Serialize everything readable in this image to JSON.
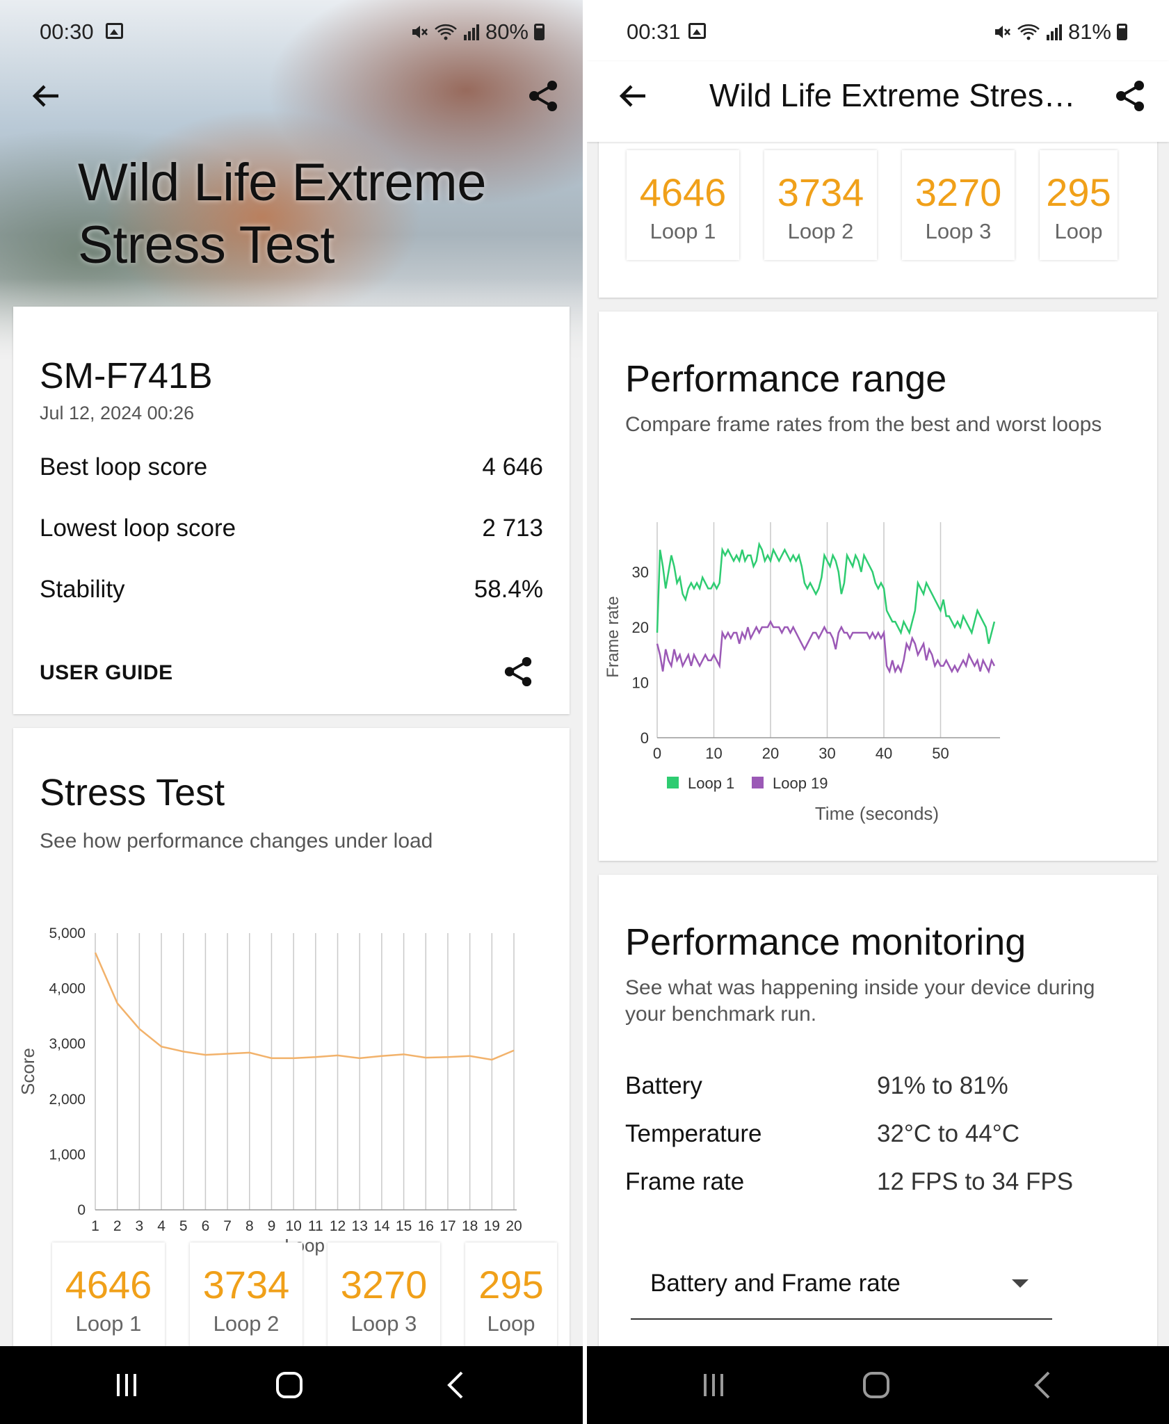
{
  "left": {
    "status": {
      "time": "00:30",
      "battery": "80%"
    },
    "hero_title_line1": "Wild Life Extreme",
    "hero_title_line2": "Stress Test",
    "summary": {
      "device": "SM-F741B",
      "date": "Jul 12, 2024 00:26",
      "rows": [
        {
          "label": "Best loop score",
          "value": "4 646"
        },
        {
          "label": "Lowest loop score",
          "value": "2 713"
        },
        {
          "label": "Stability",
          "value": "58.4%"
        }
      ],
      "user_guide": "USER GUIDE"
    },
    "stress": {
      "title": "Stress Test",
      "subtitle": "See how performance changes under load",
      "chart_data": {
        "type": "line",
        "x": [
          1,
          2,
          3,
          4,
          5,
          6,
          7,
          8,
          9,
          10,
          11,
          12,
          13,
          14,
          15,
          16,
          17,
          18,
          19,
          20
        ],
        "series": [
          {
            "color": "#f2b26b",
            "values": [
              4646,
              3734,
              3270,
              2950,
              2860,
              2800,
              2820,
              2840,
              2740,
              2740,
              2760,
              2790,
              2740,
              2780,
              2810,
              2750,
              2760,
              2780,
              2713,
              2880
            ]
          }
        ],
        "xlabel": "Loop",
        "ylabel": "Score",
        "ylim": [
          0,
          5000
        ],
        "yticks": [
          "0",
          "1,000",
          "2,000",
          "3,000",
          "4,000",
          "5,000"
        ],
        "grid": "vertical"
      },
      "loops": [
        {
          "score": "4646",
          "label": "Loop 1"
        },
        {
          "score": "3734",
          "label": "Loop 2"
        },
        {
          "score": "3270",
          "label": "Loop 3"
        },
        {
          "score": "295",
          "label": "Loop"
        }
      ]
    }
  },
  "right": {
    "status": {
      "time": "00:31",
      "battery": "81%"
    },
    "app_title": "Wild Life Extreme Stress...",
    "loops": [
      {
        "score": "4646",
        "label": "Loop 1"
      },
      {
        "score": "3734",
        "label": "Loop 2"
      },
      {
        "score": "3270",
        "label": "Loop 3"
      },
      {
        "score": "295",
        "label": "Loop"
      }
    ],
    "range": {
      "title": "Performance range",
      "subtitle": "Compare frame rates from the best and worst loops",
      "chart_data": {
        "type": "line",
        "xlabel": "Time (seconds)",
        "ylabel": "Frame rate",
        "xlim": [
          0,
          60
        ],
        "ylim": [
          0,
          39
        ],
        "xticks": [
          0,
          10,
          20,
          30,
          40,
          50
        ],
        "yticks": [
          0,
          10,
          20,
          30
        ],
        "grid": "vertical",
        "legend": "bottom-left",
        "series": [
          {
            "name": "Loop 1",
            "color": "#2ecc71",
            "x": [
              0,
              0.5,
              1,
              1.5,
              2,
              2.5,
              3,
              3.5,
              4,
              4.5,
              5,
              5.5,
              6,
              6.5,
              7,
              7.5,
              8,
              8.5,
              9,
              9.5,
              10,
              10.5,
              11,
              11.5,
              12,
              12.5,
              13,
              13.5,
              14,
              14.5,
              15,
              15.5,
              16,
              16.5,
              17,
              17.5,
              18,
              18.5,
              19,
              19.5,
              20,
              20.5,
              21,
              21.5,
              22,
              22.5,
              23,
              23.5,
              24,
              24.5,
              25,
              25.5,
              26,
              26.5,
              27,
              27.5,
              28,
              28.5,
              29,
              29.5,
              30,
              30.5,
              31,
              31.5,
              32,
              32.5,
              33,
              33.5,
              34,
              34.5,
              35,
              35.5,
              36,
              36.5,
              37,
              37.5,
              38,
              38.5,
              39,
              39.5,
              40,
              40.5,
              41,
              41.5,
              42,
              42.5,
              43,
              43.5,
              44,
              44.5,
              45,
              45.5,
              46,
              46.5,
              47,
              47.5,
              48,
              48.5,
              49,
              49.5,
              50,
              50.5,
              51,
              51.5,
              52,
              52.5,
              53,
              53.5,
              54,
              54.5,
              55,
              55.5,
              56,
              56.5,
              57,
              57.5,
              58,
              58.5,
              59,
              59.5
            ],
            "values": [
              19,
              34,
              31,
              27,
              30,
              33,
              31,
              28,
              29,
              26,
              25,
              27,
              28,
              27,
              28,
              27,
              29,
              28,
              27,
              27,
              28,
              27,
              28,
              34,
              33,
              34,
              33,
              32,
              33,
              32,
              34,
              32,
              33,
              33,
              31,
              32,
              35,
              34,
              32,
              33,
              32,
              34,
              33,
              32,
              33,
              34,
              33,
              32,
              33,
              32,
              33,
              31,
              28,
              27,
              28,
              27,
              26,
              27,
              29,
              33,
              32,
              31,
              33,
              32,
              30,
              26,
              28,
              33,
              32,
              31,
              33,
              32,
              30,
              33,
              32,
              31,
              30,
              28,
              27,
              28,
              27,
              23,
              22,
              21,
              21,
              20,
              19,
              21,
              20,
              19,
              21,
              23,
              28,
              27,
              26,
              28,
              27,
              26,
              25,
              24,
              23,
              25,
              22,
              22,
              21,
              20,
              21,
              20,
              22,
              21,
              20,
              19,
              21,
              23,
              22,
              21,
              20,
              17,
              19,
              21
            ]
          },
          {
            "name": "Loop 19",
            "color": "#9b59b6",
            "x": [
              0,
              0.5,
              1,
              1.5,
              2,
              2.5,
              3,
              3.5,
              4,
              4.5,
              5,
              5.5,
              6,
              6.5,
              7,
              7.5,
              8,
              8.5,
              9,
              9.5,
              10,
              10.5,
              11,
              11.5,
              12,
              12.5,
              13,
              13.5,
              14,
              14.5,
              15,
              15.5,
              16,
              16.5,
              17,
              17.5,
              18,
              18.5,
              19,
              19.5,
              20,
              20.5,
              21,
              21.5,
              22,
              22.5,
              23,
              23.5,
              24,
              24.5,
              25,
              25.5,
              26,
              26.5,
              27,
              27.5,
              28,
              28.5,
              29,
              29.5,
              30,
              30.5,
              31,
              31.5,
              32,
              32.5,
              33,
              33.5,
              34,
              34.5,
              35,
              35.5,
              36,
              36.5,
              37,
              37.5,
              38,
              38.5,
              39,
              39.5,
              40,
              40.5,
              41,
              41.5,
              42,
              42.5,
              43,
              43.5,
              44,
              44.5,
              45,
              45.5,
              46,
              46.5,
              47,
              47.5,
              48,
              48.5,
              49,
              49.5,
              50,
              50.5,
              51,
              51.5,
              52,
              52.5,
              53,
              53.5,
              54,
              54.5,
              55,
              55.5,
              56,
              56.5,
              57,
              57.5,
              58,
              58.5,
              59,
              59.5
            ],
            "values": [
              17,
              15,
              12,
              16,
              14,
              13,
              16,
              14,
              15,
              13,
              14,
              15,
              13,
              15,
              14,
              13,
              14,
              15,
              14,
              14,
              15,
              14,
              13,
              19,
              18,
              19,
              18,
              19,
              19,
              17,
              19,
              18,
              20,
              18,
              19,
              20,
              19,
              20,
              20,
              20,
              21,
              20,
              20,
              20,
              19,
              20,
              20,
              19,
              20,
              19,
              18,
              17,
              16,
              17,
              18,
              19,
              19,
              18,
              19,
              20,
              19,
              19,
              18,
              16,
              19,
              20,
              19,
              19,
              18,
              19,
              19,
              19,
              19,
              19,
              19,
              18,
              19,
              18,
              19,
              18,
              19,
              13,
              12,
              14,
              12,
              13,
              12,
              14,
              17,
              16,
              18,
              17,
              15,
              16,
              17,
              14,
              16,
              15,
              13,
              14,
              13,
              13,
              14,
              13,
              12,
              13,
              12,
              13,
              14,
              13,
              15,
              14,
              13,
              14,
              12,
              14,
              13,
              12,
              14,
              13
            ]
          }
        ]
      }
    },
    "monitoring": {
      "title": "Performance monitoring",
      "subtitle": "See what was happening inside your device during your benchmark run.",
      "rows": [
        {
          "label": "Battery",
          "value": "91% to 81%"
        },
        {
          "label": "Temperature",
          "value": "32°C to 44°C"
        },
        {
          "label": "Frame rate",
          "value": "12 FPS to 34 FPS"
        }
      ],
      "dropdown_value": "Battery and Frame rate"
    }
  }
}
